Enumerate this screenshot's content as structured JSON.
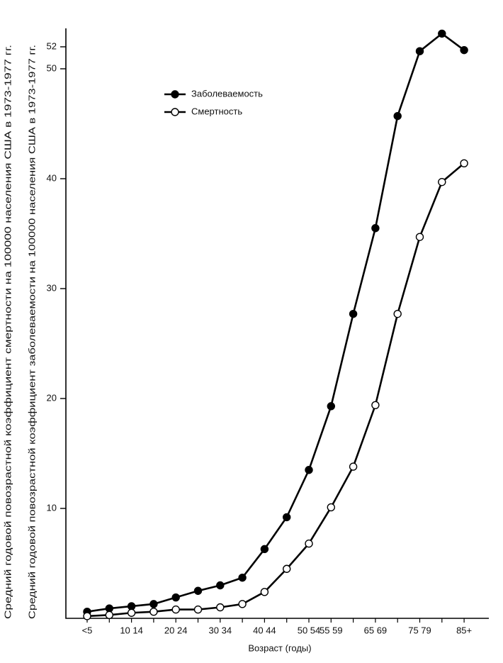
{
  "chart_data": {
    "type": "line",
    "y_label": "Средний годовой повозрастной коэффициент смертности на 100000 населения США в 1973-1977 гг.",
    "y2_label": "Средний годовой повозрастной коэффициент заболеваемости на 100000 населения США в 1973-1977 гг.",
    "x_label": "Возраст (годы)",
    "categories": [
      "<5",
      null,
      "10 14",
      null,
      "20 24",
      null,
      "30 34",
      null,
      "40 44",
      null,
      "50 54",
      "55 59",
      null,
      "65 69",
      null,
      "75 79",
      null,
      "85+"
    ],
    "series": [
      {
        "name": "Заболеваемость",
        "color": "#000000",
        "marker_fill": "#000000",
        "values": [
          0.6,
          0.9,
          1.1,
          1.3,
          1.9,
          2.5,
          3.0,
          3.7,
          6.3,
          9.2,
          13.5,
          19.3,
          27.7,
          35.5,
          45.7,
          51.6,
          53.2,
          51.7
        ]
      },
      {
        "name": "Смертность",
        "color": "#000000",
        "marker_fill": "#ffffff",
        "values": [
          0.2,
          0.3,
          0.5,
          0.6,
          0.8,
          0.8,
          1.0,
          1.3,
          2.4,
          4.5,
          6.8,
          10.1,
          13.8,
          19.4,
          27.7,
          34.7,
          39.7,
          41.4
        ]
      }
    ],
    "ylim": [
      0,
      54
    ],
    "yticks": [
      10,
      20,
      30,
      40,
      50,
      52
    ],
    "grid": false
  }
}
